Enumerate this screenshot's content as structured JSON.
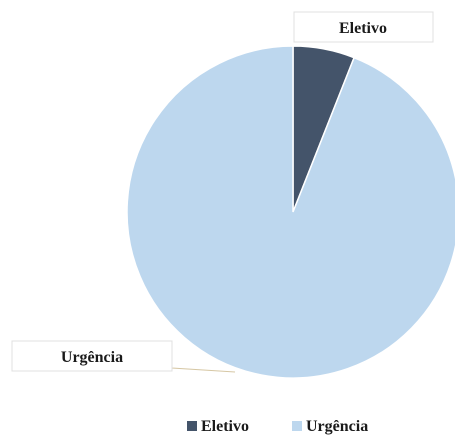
{
  "chart_data": {
    "type": "pie",
    "categories": [
      "Eletivo",
      "Urgência"
    ],
    "values": [
      6,
      94
    ],
    "unit": "percent",
    "colors": {
      "Eletivo": "#44546a",
      "Urgência": "#bdd7ee"
    },
    "data_labels": [
      "Eletivo",
      "Urgência"
    ],
    "legend": {
      "position": "bottom",
      "entries": [
        "Eletivo",
        "Urgência"
      ]
    }
  }
}
